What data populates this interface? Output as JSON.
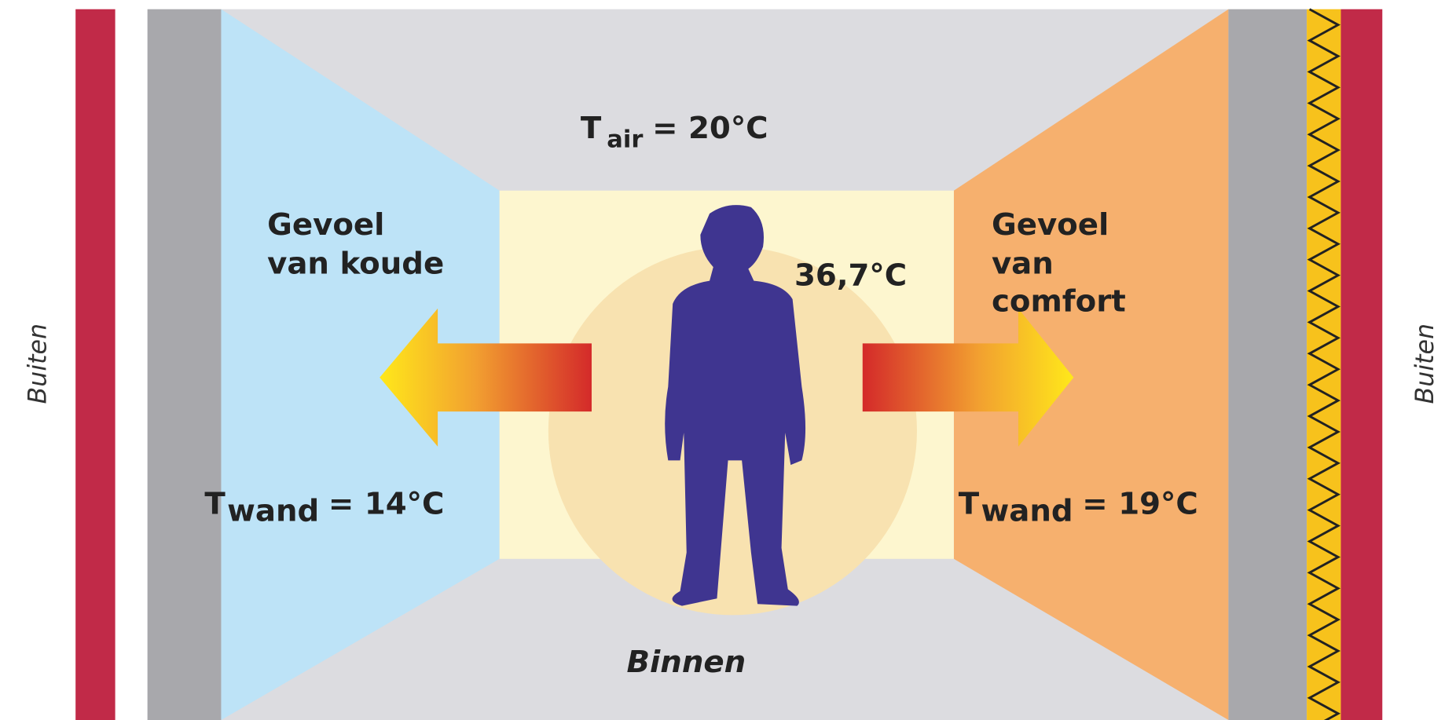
{
  "air": {
    "symbol": "T",
    "subscript": "air",
    "value": "= 20°C"
  },
  "left": {
    "feeling": [
      "Gevoel",
      "van koude"
    ],
    "wall": {
      "symbol": "T",
      "subscript": "wand",
      "value": "= 14°C"
    }
  },
  "right": {
    "feeling": [
      "Gevoel",
      "van",
      "comfort"
    ],
    "wall": {
      "symbol": "T",
      "subscript": "wand",
      "value": "= 19°C"
    }
  },
  "body_temperature": "36,7°C",
  "inside": "Binnen",
  "outside": [
    "Buiten",
    "Buiten"
  ]
}
